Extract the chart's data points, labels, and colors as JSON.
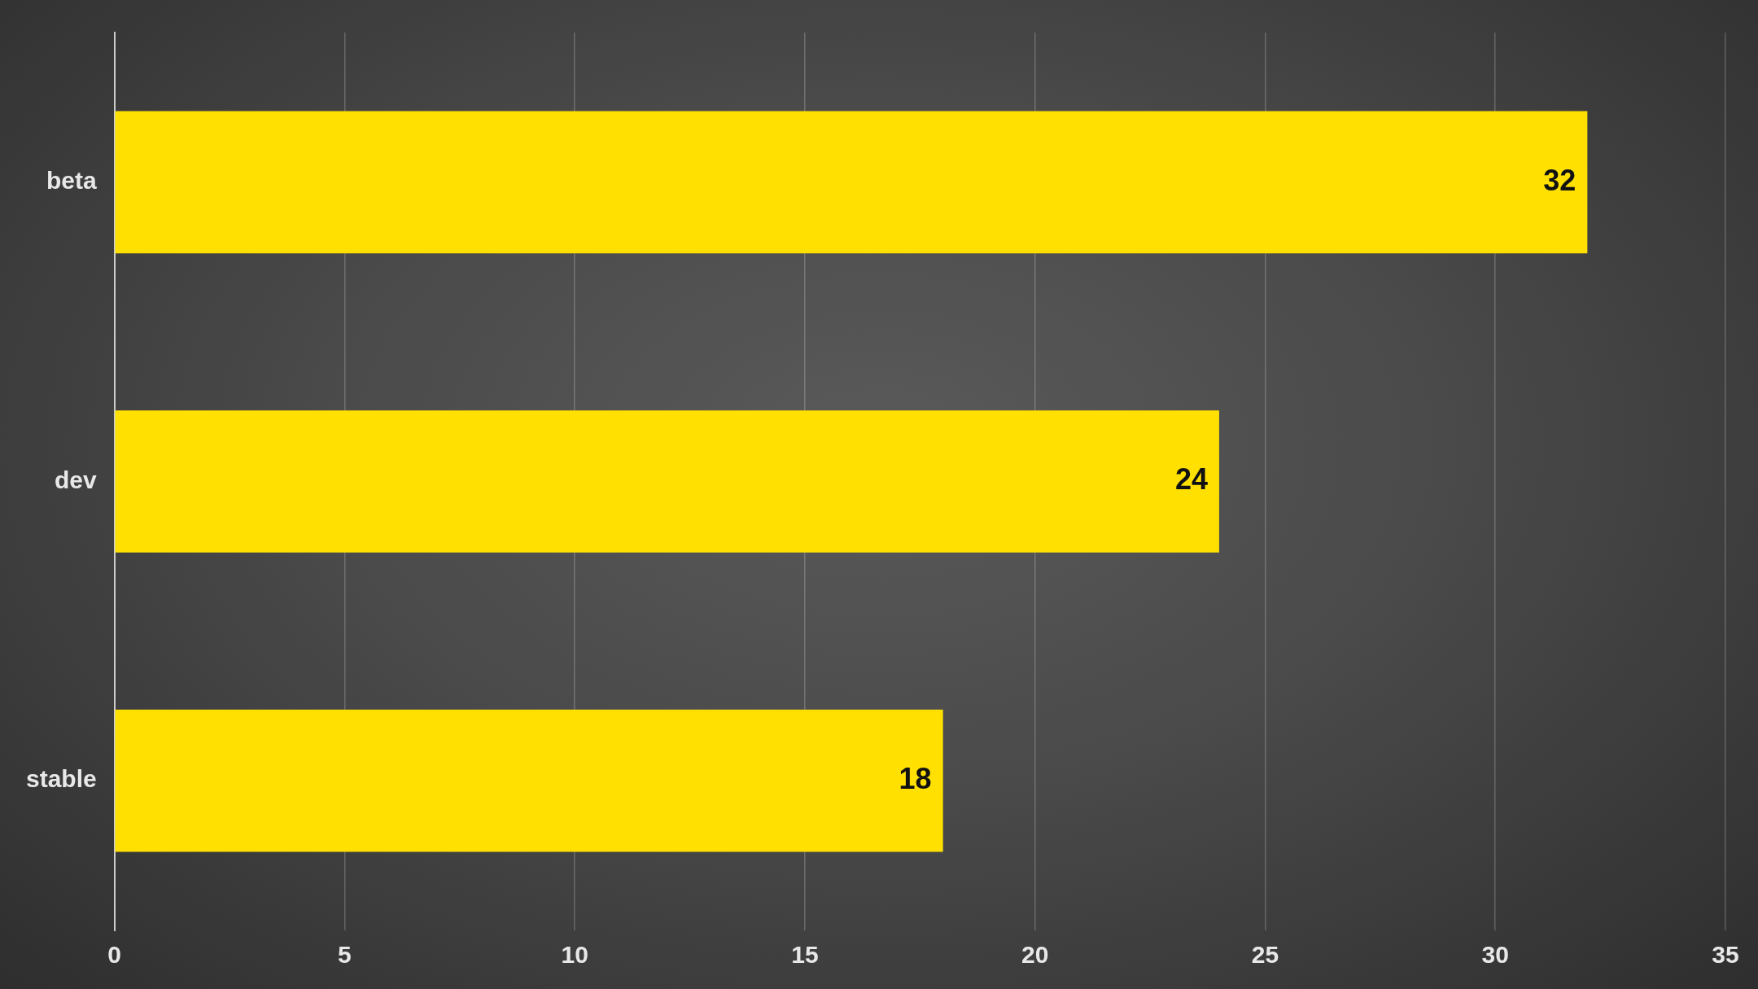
{
  "chart_data": {
    "type": "bar",
    "orientation": "horizontal",
    "categories": [
      "beta",
      "dev",
      "stable"
    ],
    "values": [
      32,
      24,
      18
    ],
    "color": "#ffe000",
    "xlim": [
      0,
      35
    ],
    "xticks": [
      0,
      5,
      10,
      15,
      20,
      25,
      30,
      35
    ],
    "grid": "x",
    "data_labels": true
  }
}
